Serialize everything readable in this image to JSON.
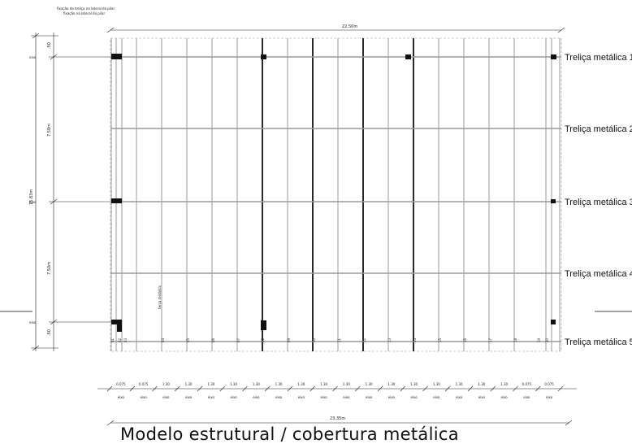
{
  "title": "Modelo estrutural / cobertura metálica",
  "notes": {
    "fixing_line1": "fixação da treliça na lateral do pilar",
    "fixing_line2": "fixação na lateral do pilar",
    "terca": "terça metálica"
  },
  "dims": {
    "top_width": "22.50m",
    "bottom_width": "23.35m",
    "total_height": "15.83m",
    "bay_upper": "7.50m",
    "bay_lower": "7.50m",
    "offset_top": ".50",
    "offset_bottom": ".50",
    "eixo": "eixo"
  },
  "trusses": [
    "Treliça metálica 1",
    "Treliça metálica 2",
    "Treliça metálica 3",
    "Treliça metálica 4",
    "Treliça metálica 5"
  ],
  "purlin_numbers": [
    "01",
    "02",
    "03",
    "04",
    "05",
    "06",
    "07",
    "08",
    "09",
    "10",
    "11",
    "12",
    "13",
    "14",
    "15",
    "16",
    "17",
    "18",
    "19",
    "20"
  ],
  "spacing_labels": [
    "0.075",
    "0.075",
    "1.30",
    "1.30",
    "1.30",
    "1.30",
    "1.30",
    "1.30",
    "1.30",
    "1.30",
    "1.30",
    "1.30",
    "1.30",
    "1.30",
    "1.30",
    "1.30",
    "1.30",
    "1.30",
    "0.075",
    "0.075"
  ],
  "colors": {
    "line": "#222222",
    "purlin": "#9a9a9a",
    "bold": "#111111"
  }
}
